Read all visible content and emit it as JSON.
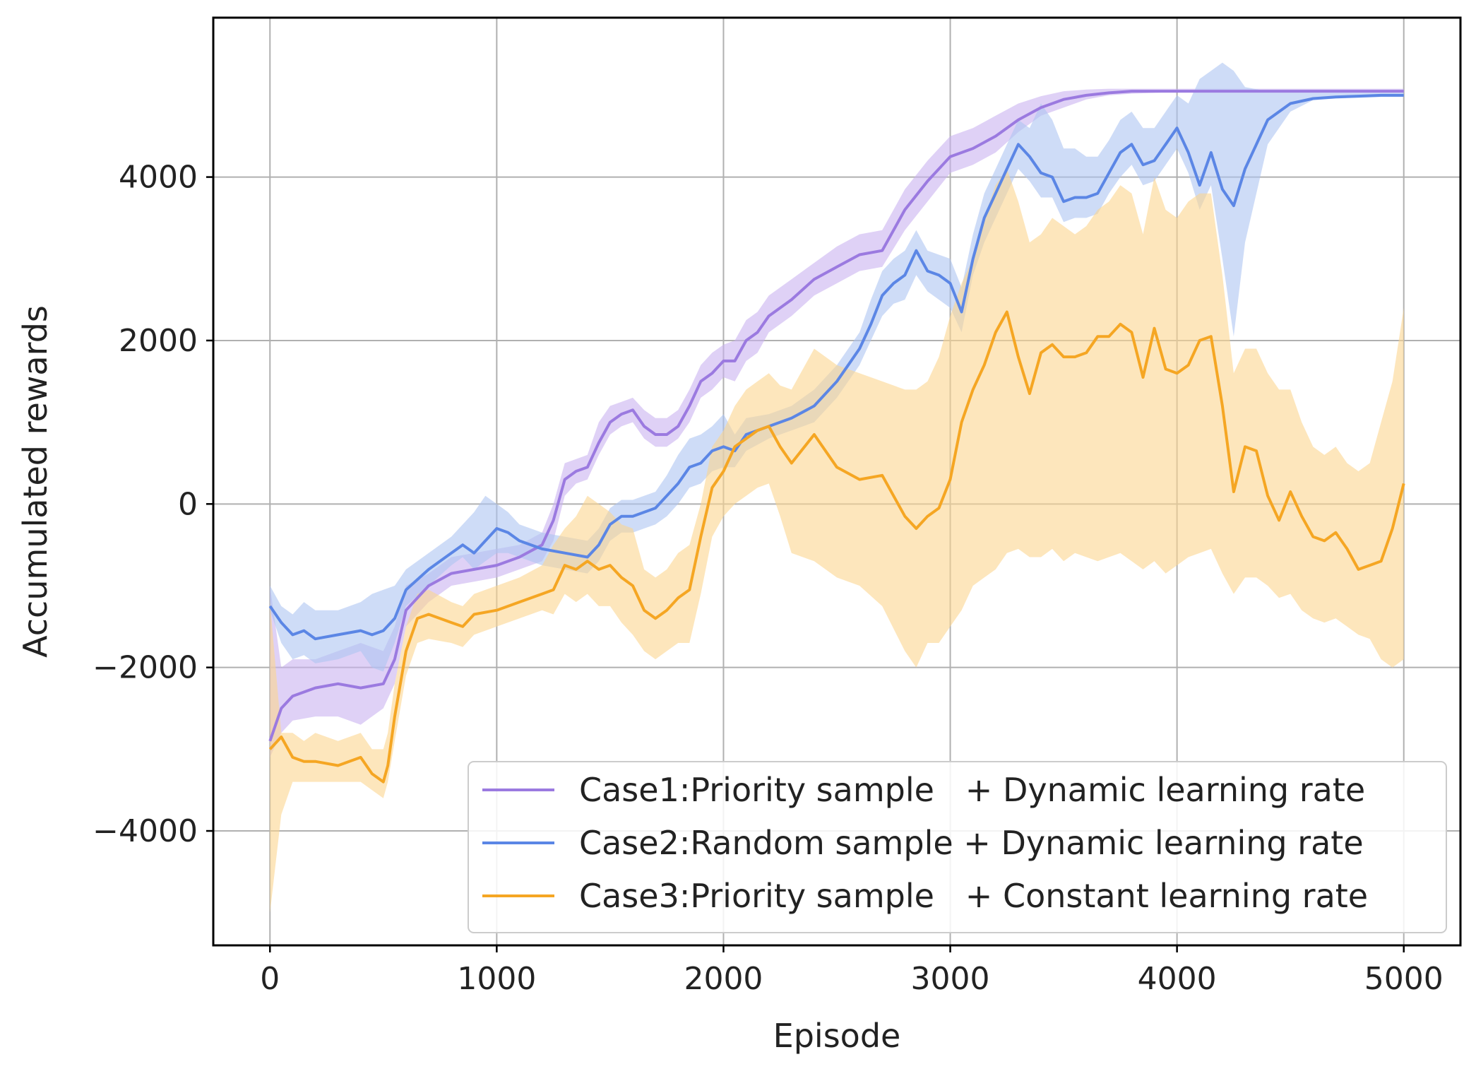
{
  "chart_data": {
    "type": "line",
    "title": "",
    "xlabel": "Episode",
    "ylabel": "Accumulated rewards",
    "xlim": [
      -250,
      5250
    ],
    "ylim": [
      -5400,
      5950
    ],
    "xticks": [
      0,
      1000,
      2000,
      3000,
      4000,
      5000
    ],
    "xtick_labels": [
      "0",
      "1000",
      "2000",
      "3000",
      "4000",
      "5000"
    ],
    "yticks": [
      -4000,
      -2000,
      0,
      2000,
      4000
    ],
    "ytick_labels": [
      "−4000",
      "−2000",
      "0",
      "2000",
      "4000"
    ],
    "grid": true,
    "legend_position": "bottom-right",
    "series": [
      {
        "name": "Case1:Priority sample   + Dynamic learning rate",
        "color": "#9b7ae0",
        "band_color": "#c9b3f0",
        "x": [
          0,
          50,
          100,
          200,
          300,
          400,
          500,
          550,
          600,
          700,
          800,
          900,
          1000,
          1100,
          1200,
          1250,
          1300,
          1350,
          1400,
          1450,
          1500,
          1550,
          1600,
          1650,
          1700,
          1750,
          1800,
          1850,
          1900,
          1950,
          2000,
          2050,
          2100,
          2150,
          2200,
          2300,
          2400,
          2500,
          2600,
          2700,
          2800,
          2900,
          3000,
          3100,
          3200,
          3300,
          3400,
          3500,
          3600,
          3700,
          3800,
          3900,
          4000,
          4200,
          4400,
          4600,
          4800,
          5000
        ],
        "y": [
          -2900,
          -2500,
          -2350,
          -2250,
          -2200,
          -2250,
          -2200,
          -1900,
          -1300,
          -1000,
          -850,
          -800,
          -750,
          -650,
          -500,
          -200,
          300,
          400,
          450,
          750,
          1000,
          1100,
          1150,
          950,
          850,
          850,
          950,
          1200,
          1500,
          1600,
          1750,
          1750,
          2000,
          2100,
          2300,
          2500,
          2750,
          2900,
          3050,
          3100,
          3600,
          3950,
          4250,
          4350,
          4500,
          4700,
          4850,
          4950,
          5000,
          5030,
          5050,
          5050,
          5050,
          5050,
          5050,
          5050,
          5050,
          5050
        ],
        "band_lower": [
          -3100,
          -2800,
          -2650,
          -2600,
          -2600,
          -2700,
          -2500,
          -2200,
          -1500,
          -1200,
          -1000,
          -950,
          -900,
          -800,
          -700,
          -450,
          100,
          250,
          300,
          600,
          850,
          950,
          1000,
          800,
          700,
          700,
          800,
          1000,
          1300,
          1400,
          1550,
          1500,
          1750,
          1850,
          2100,
          2300,
          2550,
          2700,
          2850,
          2900,
          3350,
          3700,
          4050,
          4150,
          4300,
          4550,
          4750,
          4850,
          4950,
          5000,
          5020,
          5030,
          5040,
          5040,
          5040,
          5040,
          5040,
          5040
        ],
        "band_upper": [
          -1000,
          -2000,
          -1900,
          -1900,
          -1800,
          -1700,
          -1800,
          -1500,
          -1000,
          -850,
          -650,
          -600,
          -550,
          -500,
          -350,
          0,
          500,
          550,
          600,
          1000,
          1200,
          1250,
          1300,
          1150,
          1050,
          1050,
          1150,
          1400,
          1700,
          1850,
          1950,
          2000,
          2250,
          2350,
          2550,
          2750,
          2950,
          3150,
          3300,
          3350,
          3850,
          4200,
          4500,
          4600,
          4750,
          4900,
          4990,
          5050,
          5070,
          5080,
          5080,
          5080,
          5080,
          5080,
          5080,
          5080,
          5080,
          5080
        ]
      },
      {
        "name": "Case2:Random sample + Dynamic learning rate",
        "color": "#5b86e5",
        "band_color": "#aec5f2",
        "x": [
          0,
          50,
          100,
          150,
          200,
          300,
          400,
          450,
          500,
          550,
          600,
          700,
          800,
          850,
          900,
          950,
          1000,
          1050,
          1100,
          1200,
          1300,
          1400,
          1450,
          1500,
          1550,
          1600,
          1700,
          1750,
          1800,
          1850,
          1900,
          1950,
          2000,
          2050,
          2100,
          2200,
          2300,
          2400,
          2500,
          2550,
          2600,
          2650,
          2700,
          2750,
          2800,
          2850,
          2900,
          2950,
          3000,
          3050,
          3100,
          3150,
          3200,
          3250,
          3300,
          3350,
          3400,
          3450,
          3500,
          3550,
          3600,
          3650,
          3700,
          3750,
          3800,
          3850,
          3900,
          3950,
          4000,
          4050,
          4100,
          4150,
          4200,
          4250,
          4300,
          4400,
          4500,
          4600,
          4700,
          4800,
          4900,
          5000
        ],
        "y": [
          -1250,
          -1450,
          -1600,
          -1550,
          -1650,
          -1600,
          -1550,
          -1600,
          -1550,
          -1400,
          -1050,
          -800,
          -600,
          -500,
          -600,
          -450,
          -300,
          -350,
          -450,
          -550,
          -600,
          -650,
          -500,
          -250,
          -150,
          -150,
          -50,
          100,
          250,
          450,
          500,
          650,
          700,
          650,
          850,
          950,
          1050,
          1200,
          1500,
          1700,
          1900,
          2200,
          2550,
          2700,
          2800,
          3100,
          2850,
          2800,
          2700,
          2350,
          3000,
          3500,
          3800,
          4100,
          4400,
          4250,
          4050,
          4000,
          3700,
          3750,
          3750,
          3800,
          4050,
          4300,
          4400,
          4150,
          4200,
          4400,
          4600,
          4300,
          3900,
          4300,
          3850,
          3650,
          4100,
          4700,
          4900,
          4960,
          4980,
          4990,
          5000,
          5000
        ],
        "band_lower": [
          -1300,
          -1700,
          -1900,
          -1850,
          -1950,
          -1900,
          -1800,
          -2000,
          -2050,
          -1700,
          -1250,
          -1000,
          -750,
          -650,
          -800,
          -700,
          -600,
          -600,
          -650,
          -750,
          -800,
          -850,
          -700,
          -450,
          -350,
          -350,
          -250,
          -150,
          0,
          200,
          250,
          400,
          450,
          450,
          650,
          800,
          900,
          1000,
          1300,
          1500,
          1700,
          2000,
          2300,
          2450,
          2500,
          2800,
          2600,
          2500,
          2400,
          2100,
          2800,
          3200,
          3500,
          3800,
          4100,
          3950,
          3750,
          3750,
          3450,
          3500,
          3500,
          3550,
          3800,
          4000,
          4150,
          3900,
          3950,
          4150,
          4350,
          4050,
          3600,
          3900,
          3000,
          2050,
          3200,
          4400,
          4800,
          4940,
          4960,
          4970,
          4980,
          4980
        ],
        "band_upper": [
          -1000,
          -1250,
          -1350,
          -1200,
          -1300,
          -1300,
          -1200,
          -1100,
          -1050,
          -1000,
          -800,
          -600,
          -400,
          -250,
          -100,
          100,
          0,
          -100,
          -250,
          -350,
          -400,
          -450,
          -300,
          -50,
          50,
          50,
          150,
          350,
          600,
          800,
          850,
          950,
          1100,
          850,
          1050,
          1100,
          1200,
          1400,
          1700,
          1900,
          2100,
          2500,
          2850,
          3000,
          3100,
          3350,
          3100,
          3050,
          3000,
          2650,
          3300,
          3800,
          4100,
          4400,
          4700,
          4600,
          4900,
          4700,
          4350,
          4350,
          4250,
          4250,
          4450,
          4700,
          4800,
          4600,
          4600,
          4800,
          5000,
          4900,
          5200,
          5300,
          5400,
          5300,
          5100,
          5050,
          5050,
          5050,
          5050,
          5050,
          5050,
          5050
        ]
      },
      {
        "name": "Case3:Priority sample   + Constant learning rate",
        "color": "#f5a623",
        "band_color": "#fcd68f",
        "x": [
          0,
          50,
          100,
          150,
          200,
          300,
          400,
          450,
          500,
          520,
          550,
          600,
          650,
          700,
          800,
          850,
          900,
          1000,
          1100,
          1200,
          1250,
          1300,
          1350,
          1400,
          1450,
          1500,
          1550,
          1600,
          1650,
          1700,
          1750,
          1800,
          1850,
          1900,
          1950,
          2000,
          2050,
          2100,
          2150,
          2200,
          2250,
          2300,
          2400,
          2500,
          2600,
          2700,
          2800,
          2850,
          2900,
          2950,
          3000,
          3050,
          3100,
          3150,
          3200,
          3250,
          3300,
          3350,
          3400,
          3450,
          3500,
          3550,
          3600,
          3650,
          3700,
          3750,
          3800,
          3850,
          3900,
          3950,
          4000,
          4050,
          4100,
          4150,
          4200,
          4250,
          4300,
          4350,
          4400,
          4450,
          4500,
          4550,
          4600,
          4650,
          4700,
          4750,
          4800,
          4850,
          4900,
          4950,
          5000
        ],
        "y": [
          -3000,
          -2850,
          -3100,
          -3150,
          -3150,
          -3200,
          -3100,
          -3300,
          -3400,
          -3200,
          -2600,
          -1800,
          -1400,
          -1350,
          -1450,
          -1500,
          -1350,
          -1300,
          -1200,
          -1100,
          -1050,
          -750,
          -800,
          -700,
          -800,
          -750,
          -900,
          -1000,
          -1300,
          -1400,
          -1300,
          -1150,
          -1050,
          -400,
          200,
          400,
          700,
          800,
          900,
          950,
          700,
          500,
          850,
          450,
          300,
          350,
          -150,
          -300,
          -150,
          -50,
          300,
          1000,
          1400,
          1700,
          2100,
          2350,
          1800,
          1350,
          1850,
          1950,
          1800,
          1800,
          1850,
          2050,
          2050,
          2200,
          2100,
          1550,
          2150,
          1650,
          1600,
          1700,
          2000,
          2050,
          1200,
          150,
          700,
          650,
          100,
          -200,
          150,
          -150,
          -400,
          -450,
          -350,
          -550,
          -800,
          -750,
          -700,
          -300,
          250
        ],
        "band_lower": [
          -5000,
          -3800,
          -3400,
          -3400,
          -3400,
          -3400,
          -3400,
          -3500,
          -3600,
          -3400,
          -2900,
          -2100,
          -1700,
          -1650,
          -1700,
          -1750,
          -1600,
          -1500,
          -1400,
          -1300,
          -1350,
          -1100,
          -1200,
          -1100,
          -1250,
          -1250,
          -1450,
          -1600,
          -1800,
          -1900,
          -1800,
          -1700,
          -1700,
          -1100,
          -400,
          -150,
          0,
          100,
          200,
          250,
          -150,
          -600,
          -700,
          -900,
          -1000,
          -1250,
          -1800,
          -2000,
          -1700,
          -1700,
          -1500,
          -1300,
          -1000,
          -900,
          -800,
          -600,
          -550,
          -650,
          -650,
          -550,
          -700,
          -600,
          -650,
          -700,
          -650,
          -600,
          -700,
          -800,
          -700,
          -850,
          -750,
          -650,
          -600,
          -550,
          -850,
          -1100,
          -900,
          -900,
          -1000,
          -1150,
          -1100,
          -1300,
          -1400,
          -1450,
          -1400,
          -1500,
          -1600,
          -1650,
          -1900,
          -2000,
          -1900
        ],
        "band_upper": [
          -1200,
          -2800,
          -2800,
          -2900,
          -2800,
          -2900,
          -2800,
          -3000,
          -3000,
          -2800,
          -2200,
          -1500,
          -1100,
          -1050,
          -1200,
          -1250,
          -1100,
          -1000,
          -900,
          -750,
          -500,
          -300,
          -150,
          100,
          0,
          -100,
          -250,
          -300,
          -800,
          -900,
          -800,
          -600,
          -500,
          0,
          700,
          900,
          1200,
          1400,
          1500,
          1600,
          1450,
          1400,
          1900,
          1700,
          1600,
          1500,
          1400,
          1400,
          1500,
          1800,
          2300,
          2700,
          3000,
          3500,
          3900,
          4100,
          3700,
          3200,
          3300,
          3500,
          3400,
          3300,
          3400,
          3600,
          3700,
          3900,
          3800,
          3300,
          4000,
          3600,
          3500,
          3700,
          3800,
          3800,
          2800,
          1600,
          1900,
          1900,
          1600,
          1400,
          1400,
          1000,
          700,
          600,
          700,
          500,
          400,
          500,
          1000,
          1500,
          2400
        ]
      }
    ]
  }
}
